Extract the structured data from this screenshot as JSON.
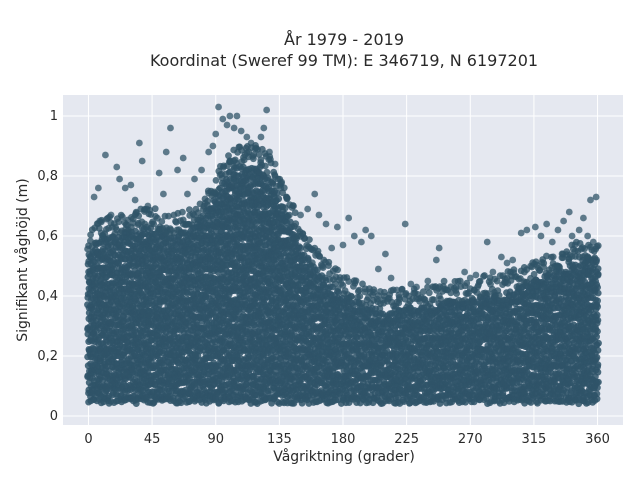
{
  "chart_data": {
    "type": "scatter",
    "title_line1": "År 1979 - 2019",
    "title_line2": "Koordinat (Sweref 99 TM): E 346719, N 6197201",
    "xlabel": "Vågriktning (grader)",
    "ylabel": "Signifikant våghöjd (m)",
    "xlim": [
      -18,
      378
    ],
    "ylim": [
      -0.03,
      1.07
    ],
    "grid": true,
    "marker_color": "#2f5468",
    "background_color": "#e5e8f0",
    "x_ticks": [
      {
        "value": 0,
        "label": "0"
      },
      {
        "value": 45,
        "label": "45"
      },
      {
        "value": 90,
        "label": "90"
      },
      {
        "value": 135,
        "label": "135"
      },
      {
        "value": 180,
        "label": "180"
      },
      {
        "value": 225,
        "label": "225"
      },
      {
        "value": 270,
        "label": "270"
      },
      {
        "value": 315,
        "label": "315"
      },
      {
        "value": 360,
        "label": "360"
      }
    ],
    "y_ticks": [
      {
        "value": 0,
        "label": "0"
      },
      {
        "value": 0.2,
        "label": "0,2"
      },
      {
        "value": 0.4,
        "label": "0,4"
      },
      {
        "value": 0.6,
        "label": "0,6"
      },
      {
        "value": 0.8,
        "label": "0,8"
      },
      {
        "value": 1.0,
        "label": "1"
      }
    ],
    "envelope": {
      "direction": [
        0,
        10,
        20,
        30,
        40,
        50,
        60,
        70,
        80,
        90,
        100,
        110,
        120,
        130,
        140,
        150,
        160,
        170,
        180,
        190,
        200,
        210,
        220,
        230,
        240,
        250,
        260,
        270,
        280,
        290,
        300,
        310,
        320,
        330,
        340,
        350,
        360
      ],
      "dense_upper_m": [
        0.54,
        0.6,
        0.6,
        0.62,
        0.63,
        0.62,
        0.6,
        0.62,
        0.66,
        0.74,
        0.82,
        0.84,
        0.84,
        0.78,
        0.68,
        0.56,
        0.5,
        0.44,
        0.4,
        0.38,
        0.36,
        0.35,
        0.36,
        0.36,
        0.36,
        0.38,
        0.38,
        0.38,
        0.4,
        0.4,
        0.42,
        0.44,
        0.46,
        0.48,
        0.5,
        0.52,
        0.52
      ],
      "lower_m": 0.05
    },
    "outliers": [
      {
        "x": 4,
        "y": 0.73
      },
      {
        "x": 7,
        "y": 0.76
      },
      {
        "x": 8,
        "y": 0.65
      },
      {
        "x": 9,
        "y": 0.61
      },
      {
        "x": 12,
        "y": 0.87
      },
      {
        "x": 16,
        "y": 0.67
      },
      {
        "x": 20,
        "y": 0.83
      },
      {
        "x": 22,
        "y": 0.79
      },
      {
        "x": 26,
        "y": 0.76
      },
      {
        "x": 30,
        "y": 0.77
      },
      {
        "x": 33,
        "y": 0.72
      },
      {
        "x": 36,
        "y": 0.91
      },
      {
        "x": 38,
        "y": 0.85
      },
      {
        "x": 42,
        "y": 0.7
      },
      {
        "x": 50,
        "y": 0.81
      },
      {
        "x": 53,
        "y": 0.74
      },
      {
        "x": 55,
        "y": 0.88
      },
      {
        "x": 58,
        "y": 0.96
      },
      {
        "x": 63,
        "y": 0.82
      },
      {
        "x": 67,
        "y": 0.86
      },
      {
        "x": 70,
        "y": 0.74
      },
      {
        "x": 75,
        "y": 0.79
      },
      {
        "x": 80,
        "y": 0.82
      },
      {
        "x": 85,
        "y": 0.88
      },
      {
        "x": 88,
        "y": 0.9
      },
      {
        "x": 90,
        "y": 0.94
      },
      {
        "x": 92,
        "y": 1.03
      },
      {
        "x": 95,
        "y": 0.99
      },
      {
        "x": 98,
        "y": 0.97
      },
      {
        "x": 100,
        "y": 1.0
      },
      {
        "x": 103,
        "y": 0.96
      },
      {
        "x": 105,
        "y": 1.0
      },
      {
        "x": 108,
        "y": 0.95
      },
      {
        "x": 112,
        "y": 0.93
      },
      {
        "x": 115,
        "y": 0.91
      },
      {
        "x": 118,
        "y": 0.89
      },
      {
        "x": 122,
        "y": 0.93
      },
      {
        "x": 124,
        "y": 0.96
      },
      {
        "x": 126,
        "y": 1.02
      },
      {
        "x": 128,
        "y": 0.88
      },
      {
        "x": 132,
        "y": 0.84
      },
      {
        "x": 136,
        "y": 0.76
      },
      {
        "x": 140,
        "y": 0.73
      },
      {
        "x": 145,
        "y": 0.7
      },
      {
        "x": 150,
        "y": 0.67
      },
      {
        "x": 155,
        "y": 0.69
      },
      {
        "x": 160,
        "y": 0.74
      },
      {
        "x": 163,
        "y": 0.67
      },
      {
        "x": 168,
        "y": 0.64
      },
      {
        "x": 172,
        "y": 0.56
      },
      {
        "x": 176,
        "y": 0.63
      },
      {
        "x": 180,
        "y": 0.57
      },
      {
        "x": 184,
        "y": 0.66
      },
      {
        "x": 188,
        "y": 0.6
      },
      {
        "x": 193,
        "y": 0.58
      },
      {
        "x": 196,
        "y": 0.62
      },
      {
        "x": 200,
        "y": 0.6
      },
      {
        "x": 205,
        "y": 0.49
      },
      {
        "x": 210,
        "y": 0.54
      },
      {
        "x": 214,
        "y": 0.46
      },
      {
        "x": 218,
        "y": 0.42
      },
      {
        "x": 224,
        "y": 0.64
      },
      {
        "x": 228,
        "y": 0.44
      },
      {
        "x": 232,
        "y": 0.43
      },
      {
        "x": 240,
        "y": 0.45
      },
      {
        "x": 246,
        "y": 0.52
      },
      {
        "x": 248,
        "y": 0.56
      },
      {
        "x": 254,
        "y": 0.42
      },
      {
        "x": 260,
        "y": 0.43
      },
      {
        "x": 266,
        "y": 0.48
      },
      {
        "x": 270,
        "y": 0.46
      },
      {
        "x": 274,
        "y": 0.47
      },
      {
        "x": 282,
        "y": 0.58
      },
      {
        "x": 286,
        "y": 0.48
      },
      {
        "x": 292,
        "y": 0.53
      },
      {
        "x": 296,
        "y": 0.51
      },
      {
        "x": 300,
        "y": 0.52
      },
      {
        "x": 306,
        "y": 0.61
      },
      {
        "x": 310,
        "y": 0.62
      },
      {
        "x": 316,
        "y": 0.63
      },
      {
        "x": 320,
        "y": 0.6
      },
      {
        "x": 324,
        "y": 0.64
      },
      {
        "x": 328,
        "y": 0.58
      },
      {
        "x": 332,
        "y": 0.62
      },
      {
        "x": 336,
        "y": 0.65
      },
      {
        "x": 340,
        "y": 0.68
      },
      {
        "x": 342,
        "y": 0.6
      },
      {
        "x": 344,
        "y": 0.57
      },
      {
        "x": 347,
        "y": 0.62
      },
      {
        "x": 350,
        "y": 0.66
      },
      {
        "x": 353,
        "y": 0.6
      },
      {
        "x": 355,
        "y": 0.72
      },
      {
        "x": 357,
        "y": 0.58
      },
      {
        "x": 359,
        "y": 0.73
      }
    ]
  }
}
